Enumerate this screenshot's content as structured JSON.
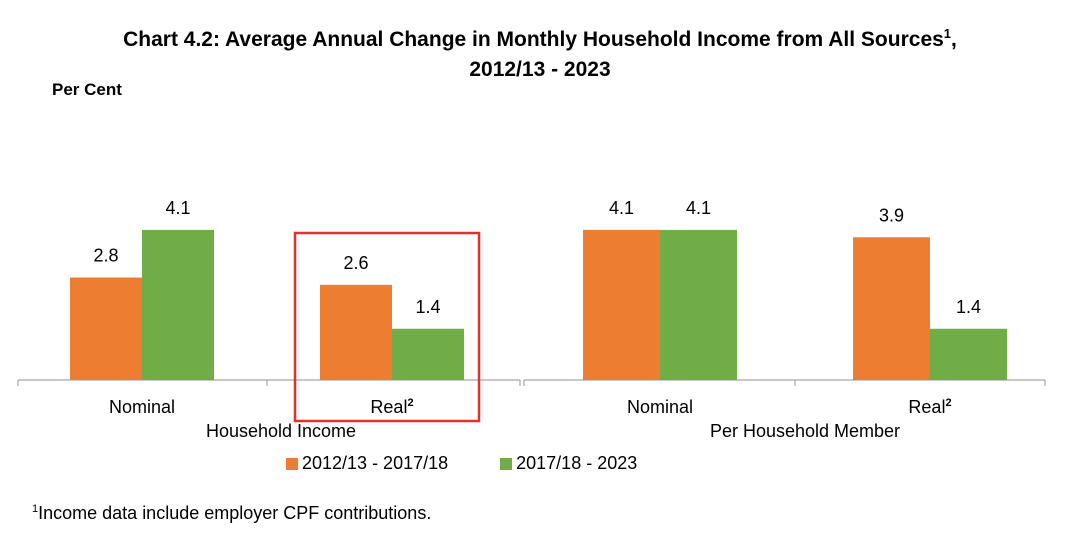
{
  "title_line1": "Chart 4.2: Average Annual Change in Monthly Household Income from All Sources",
  "title_sup": "1",
  "title_comma": ",",
  "title_line2": "2012/13 - 2023",
  "footnote_marker": "1",
  "footnote_text": "Income data include employer CPF contributions.",
  "colors": {
    "series1": "#ED7D31",
    "series2": "#70AD47",
    "highlight": "#E8302A",
    "axis": "#A6A6A6"
  },
  "chart_data": {
    "type": "bar",
    "title": "Chart 4.2: Average Annual Change in Monthly Household Income from All Sources, 2012/13 - 2023",
    "ylabel": "Per Cent",
    "ylim": [
      0,
      5
    ],
    "grid": false,
    "legend_position": "bottom",
    "groups": [
      {
        "name": "Household Income",
        "categories": [
          {
            "label": "Nominal",
            "sup": ""
          },
          {
            "label": "Real",
            "sup": "2"
          }
        ]
      },
      {
        "name": "Per Household Member",
        "categories": [
          {
            "label": "Nominal",
            "sup": ""
          },
          {
            "label": "Real",
            "sup": "2"
          }
        ]
      }
    ],
    "series": [
      {
        "name": "2012/13 - 2017/18",
        "values": [
          2.8,
          2.6,
          4.1,
          3.9
        ]
      },
      {
        "name": "2017/18 - 2023",
        "values": [
          4.1,
          1.4,
          4.1,
          1.4
        ]
      }
    ],
    "value_labels": [
      [
        "2.8",
        "2.6",
        "4.1",
        "3.9"
      ],
      [
        "4.1",
        "1.4",
        "4.1",
        "1.4"
      ]
    ],
    "highlighted_category_index": 1
  }
}
